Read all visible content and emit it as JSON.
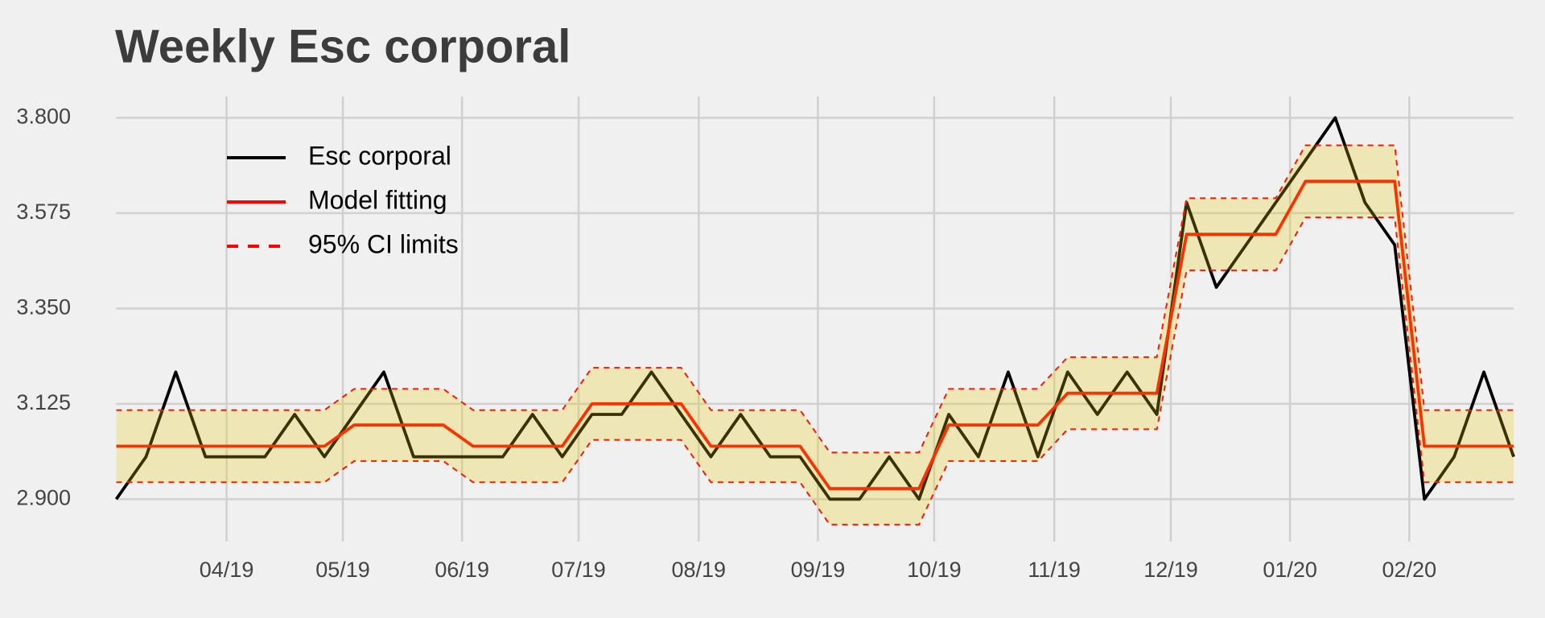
{
  "chart_data": {
    "type": "line",
    "title": "Weekly Esc corporal",
    "x": [
      0,
      1,
      2,
      3,
      4,
      5,
      6,
      7,
      8,
      9,
      10,
      11,
      12,
      13,
      14,
      15,
      16,
      17,
      18,
      19,
      20,
      21,
      22,
      23,
      24,
      25,
      26,
      27,
      28,
      29,
      30,
      31,
      32,
      33,
      34,
      35,
      36,
      37,
      38,
      39,
      40,
      41,
      42,
      43,
      44,
      45,
      46,
      47
    ],
    "xlim": [
      0,
      47
    ],
    "xticks": [
      {
        "value": 3.71,
        "label": "04/19"
      },
      {
        "value": 7.62,
        "label": "05/19"
      },
      {
        "value": 11.63,
        "label": "06/19"
      },
      {
        "value": 15.55,
        "label": "07/19"
      },
      {
        "value": 19.59,
        "label": "08/19"
      },
      {
        "value": 23.6,
        "label": "09/19"
      },
      {
        "value": 27.51,
        "label": "10/19"
      },
      {
        "value": 31.55,
        "label": "11/19"
      },
      {
        "value": 35.47,
        "label": "12/19"
      },
      {
        "value": 39.48,
        "label": "01/20"
      },
      {
        "value": 43.49,
        "label": "02/20"
      }
    ],
    "ylim": [
      2.8,
      3.85
    ],
    "yticks": [
      {
        "value": 2.9,
        "label": "2.900"
      },
      3.125,
      {
        "value": 3.35,
        "label": "3.350"
      },
      3.575,
      {
        "value": 3.8,
        "label": "3.800"
      }
    ],
    "grid": true,
    "legend": "upper left",
    "band_color": "#e6c800",
    "series": [
      {
        "name": "Esc corporal",
        "color": "#000000",
        "linestyle": "solid",
        "values": [
          2.9,
          3.0,
          3.2,
          3.0,
          3.0,
          3.0,
          3.1,
          3.0,
          3.1,
          3.2,
          3.0,
          3.0,
          3.0,
          3.0,
          3.1,
          3.0,
          3.1,
          3.1,
          3.2,
          3.1,
          3.0,
          3.1,
          3.0,
          3.0,
          2.9,
          2.9,
          3.0,
          2.9,
          3.1,
          3.0,
          3.2,
          3.0,
          3.2,
          3.1,
          3.2,
          3.1,
          3.6,
          3.4,
          3.5,
          3.6,
          3.7,
          3.8,
          3.6,
          3.5,
          2.9,
          3.0,
          3.2,
          3.0
        ]
      },
      {
        "name": "Model fitting",
        "color": "#ff0000",
        "linestyle": "solid",
        "values": [
          3.025,
          3.025,
          3.025,
          3.025,
          3.025,
          3.025,
          3.025,
          3.025,
          3.075,
          3.075,
          3.075,
          3.075,
          3.025,
          3.025,
          3.025,
          3.025,
          3.125,
          3.125,
          3.125,
          3.125,
          3.025,
          3.025,
          3.025,
          3.025,
          2.925,
          2.925,
          2.925,
          2.925,
          3.075,
          3.075,
          3.075,
          3.075,
          3.15,
          3.15,
          3.15,
          3.15,
          3.525,
          3.525,
          3.525,
          3.525,
          3.65,
          3.65,
          3.65,
          3.65,
          3.025,
          3.025,
          3.025,
          3.025
        ]
      },
      {
        "name": "95% CI limits",
        "color": "#ff0000",
        "linestyle": "dashed",
        "values": [
          3.11,
          3.11,
          3.11,
          3.11,
          3.11,
          3.11,
          3.11,
          3.11,
          3.16,
          3.16,
          3.16,
          3.16,
          3.11,
          3.11,
          3.11,
          3.11,
          3.21,
          3.21,
          3.21,
          3.21,
          3.11,
          3.11,
          3.11,
          3.11,
          3.01,
          3.01,
          3.01,
          3.01,
          3.16,
          3.16,
          3.16,
          3.16,
          3.235,
          3.235,
          3.235,
          3.235,
          3.61,
          3.61,
          3.61,
          3.61,
          3.735,
          3.735,
          3.735,
          3.735,
          3.11,
          3.11,
          3.11,
          3.11
        ],
        "lower_values": [
          2.94,
          2.94,
          2.94,
          2.94,
          2.94,
          2.94,
          2.94,
          2.94,
          2.99,
          2.99,
          2.99,
          2.99,
          2.94,
          2.94,
          2.94,
          2.94,
          3.04,
          3.04,
          3.04,
          3.04,
          2.94,
          2.94,
          2.94,
          2.94,
          2.84,
          2.84,
          2.84,
          2.84,
          2.99,
          2.99,
          2.99,
          2.99,
          3.065,
          3.065,
          3.065,
          3.065,
          3.44,
          3.44,
          3.44,
          3.44,
          3.565,
          3.565,
          3.565,
          3.565,
          2.94,
          2.94,
          2.94,
          2.94
        ]
      }
    ]
  }
}
